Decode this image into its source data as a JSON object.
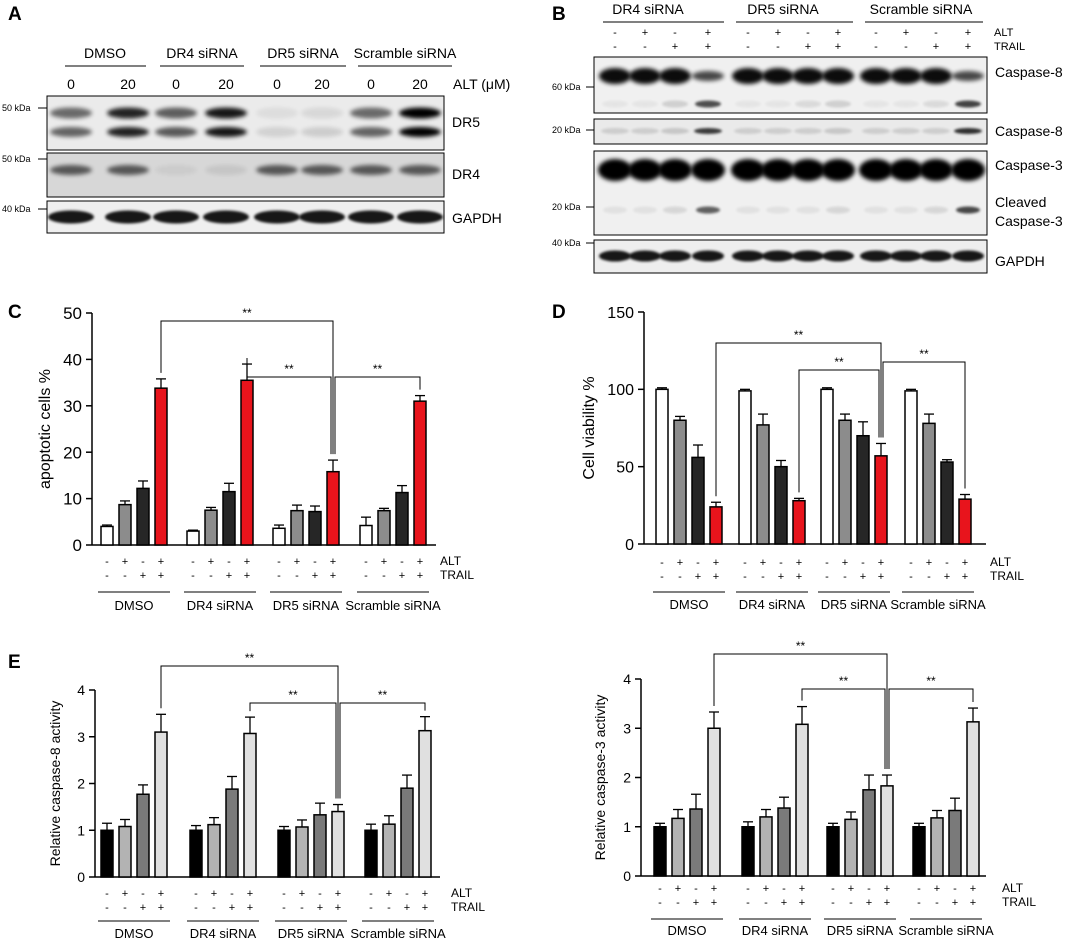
{
  "panel_letters": [
    "A",
    "B",
    "C",
    "D",
    "E"
  ],
  "blot_a": {
    "groups": [
      "DMSO",
      "DR4 siRNA",
      "DR5 siRNA",
      "Scramble siRNA"
    ],
    "doses": [
      "0",
      "20",
      "0",
      "20",
      "0",
      "20",
      "0",
      "20"
    ],
    "dose_label": "ALT (μM)",
    "markers": [
      "50 kDa",
      "50 kDa",
      "40 kDa"
    ],
    "bands": [
      "DR5",
      "DR4",
      "GAPDH"
    ],
    "intensity": {
      "DR5": [
        0.55,
        0.85,
        0.6,
        0.9,
        0.06,
        0.08,
        0.55,
        1.0
      ],
      "DR4": [
        0.6,
        0.6,
        0.05,
        0.08,
        0.6,
        0.6,
        0.6,
        0.6
      ],
      "GAPDH": [
        0.9,
        0.9,
        0.9,
        0.9,
        0.9,
        0.9,
        0.9,
        0.9
      ]
    }
  },
  "blot_b": {
    "groups": [
      "DR4 siRNA",
      "DR5 siRNA",
      "Scramble siRNA"
    ],
    "alt_label": "ALT",
    "trail_label": "TRAIL",
    "alt_signs": [
      "-",
      "+",
      "-",
      "+",
      "-",
      "+",
      "-",
      "+",
      "-",
      "+",
      "-",
      "+"
    ],
    "trail_signs": [
      "-",
      "-",
      "+",
      "+",
      "-",
      "-",
      "+",
      "+",
      "-",
      "-",
      "+",
      "+"
    ],
    "markers": [
      "60 kDa",
      "20 kDa",
      "20 kDa",
      "40 kDa"
    ],
    "labels": [
      "Caspase-8",
      "Caspase-8",
      "Caspase-3",
      "Cleaved",
      "Caspase-3",
      "GAPDH"
    ],
    "cleaved_casp8": [
      0.05,
      0.05,
      0.15,
      0.75,
      0.05,
      0.05,
      0.1,
      0.15,
      0.05,
      0.05,
      0.1,
      0.8
    ],
    "cleaved_casp3": [
      0.05,
      0.05,
      0.1,
      0.6,
      0.05,
      0.05,
      0.05,
      0.1,
      0.05,
      0.05,
      0.1,
      0.7
    ]
  },
  "significance": "**",
  "chart_data": [
    {
      "id": "C",
      "type": "bar",
      "ylabel": "apoptotic cells %",
      "ylim": [
        0,
        50
      ],
      "yticks": [
        0,
        10,
        20,
        30,
        40,
        50
      ],
      "groups": [
        "DMSO",
        "DR4 siRNA",
        "DR5 siRNA",
        "Scramble siRNA"
      ],
      "alt_label": "ALT",
      "trail_label": "TRAIL",
      "alt_signs": [
        "-",
        "+",
        "-",
        "+"
      ],
      "trail_signs": [
        "-",
        "-",
        "+",
        "+"
      ],
      "values": [
        [
          4.0,
          8.7,
          12.2,
          33.8
        ],
        [
          3.0,
          7.5,
          11.5,
          35.5
        ],
        [
          3.6,
          7.4,
          7.2,
          15.8
        ],
        [
          4.2,
          7.4,
          11.3,
          31.0
        ]
      ],
      "errors": [
        [
          0.3,
          0.8,
          1.6,
          2.0
        ],
        [
          0.2,
          0.6,
          1.8,
          3.5
        ],
        [
          0.7,
          1.2,
          1.2,
          2.5
        ],
        [
          1.8,
          0.5,
          1.5,
          1.2
        ]
      ],
      "colors": [
        "#ffffff",
        "#8c8c8c",
        "#262626",
        "#e8141c"
      ],
      "comparisons": [
        {
          "from": [
            0,
            3
          ],
          "to": [
            2,
            3
          ],
          "label": "**"
        },
        {
          "from": [
            1,
            3
          ],
          "to": [
            2,
            3
          ],
          "label": "**"
        },
        {
          "from": [
            3,
            3
          ],
          "to": [
            2,
            3
          ],
          "label": "**"
        }
      ]
    },
    {
      "id": "D",
      "type": "bar",
      "ylabel": "Cell viability %",
      "ylim": [
        0,
        150
      ],
      "yticks": [
        0,
        50,
        100,
        150
      ],
      "groups": [
        "DMSO",
        "DR4 siRNA",
        "DR5 siRNA",
        "Scramble siRNA"
      ],
      "alt_label": "ALT",
      "trail_label": "TRAIL",
      "alt_signs": [
        "-",
        "+",
        "-",
        "+"
      ],
      "trail_signs": [
        "-",
        "-",
        "+",
        "+"
      ],
      "values": [
        [
          100,
          80,
          56,
          24
        ],
        [
          99,
          77,
          50,
          28
        ],
        [
          100,
          80,
          70,
          57
        ],
        [
          99,
          78,
          53,
          29
        ]
      ],
      "errors": [
        [
          1,
          2.5,
          8,
          3
        ],
        [
          1,
          7,
          4,
          1.5
        ],
        [
          1,
          4,
          9,
          8
        ],
        [
          1,
          6,
          1.5,
          3
        ]
      ],
      "colors": [
        "#ffffff",
        "#8c8c8c",
        "#262626",
        "#e8141c"
      ],
      "comparisons": [
        {
          "from": [
            0,
            3
          ],
          "to": [
            2,
            3
          ],
          "label": "**"
        },
        {
          "from": [
            1,
            3
          ],
          "to": [
            2,
            3
          ],
          "label": "**"
        },
        {
          "from": [
            3,
            3
          ],
          "to": [
            2,
            3
          ],
          "label": "**"
        }
      ]
    },
    {
      "id": "E1",
      "type": "bar",
      "ylabel": "Relative caspase-8 activity",
      "ylim": [
        0,
        4
      ],
      "yticks": [
        0,
        1,
        2,
        3,
        4
      ],
      "groups": [
        "DMSO",
        "DR4 siRNA",
        "DR5 siRNA",
        "Scramble siRNA"
      ],
      "alt_label": "ALT",
      "trail_label": "TRAIL",
      "alt_signs": [
        "-",
        "+",
        "-",
        "+"
      ],
      "trail_signs": [
        "-",
        "-",
        "+",
        "+"
      ],
      "values": [
        [
          1.0,
          1.08,
          1.77,
          3.1
        ],
        [
          1.0,
          1.12,
          1.88,
          3.07
        ],
        [
          1.0,
          1.07,
          1.33,
          1.4
        ],
        [
          1.0,
          1.13,
          1.9,
          3.13
        ]
      ],
      "errors": [
        [
          0.15,
          0.15,
          0.2,
          0.38
        ],
        [
          0.1,
          0.15,
          0.27,
          0.35
        ],
        [
          0.08,
          0.15,
          0.25,
          0.15
        ],
        [
          0.13,
          0.18,
          0.28,
          0.3
        ]
      ],
      "colors": [
        "#000000",
        "#b3b3b3",
        "#7a7a7a",
        "#e0e0e0"
      ],
      "comparisons": [
        {
          "from": [
            0,
            3
          ],
          "to": [
            2,
            3
          ],
          "label": "**"
        },
        {
          "from": [
            1,
            3
          ],
          "to": [
            2,
            3
          ],
          "label": "**"
        },
        {
          "from": [
            3,
            3
          ],
          "to": [
            2,
            3
          ],
          "label": "**"
        }
      ]
    },
    {
      "id": "E2",
      "type": "bar",
      "ylabel": "Relative caspase-3 activity",
      "ylim": [
        0,
        4
      ],
      "yticks": [
        0,
        1,
        2,
        3,
        4
      ],
      "groups": [
        "DMSO",
        "DR4 siRNA",
        "DR5 siRNA",
        "Scramble siRNA"
      ],
      "alt_label": "ALT",
      "trail_label": "TRAIL",
      "alt_signs": [
        "-",
        "+",
        "-",
        "+"
      ],
      "trail_signs": [
        "-",
        "-",
        "+",
        "+"
      ],
      "values": [
        [
          1.0,
          1.17,
          1.36,
          3.0
        ],
        [
          1.0,
          1.2,
          1.38,
          3.08
        ],
        [
          1.0,
          1.15,
          1.75,
          1.83
        ],
        [
          1.0,
          1.18,
          1.33,
          3.13
        ]
      ],
      "errors": [
        [
          0.07,
          0.18,
          0.3,
          0.33
        ],
        [
          0.1,
          0.15,
          0.22,
          0.36
        ],
        [
          0.07,
          0.15,
          0.3,
          0.22
        ],
        [
          0.07,
          0.15,
          0.25,
          0.28
        ]
      ],
      "colors": [
        "#000000",
        "#b3b3b3",
        "#7a7a7a",
        "#e0e0e0"
      ],
      "comparisons": [
        {
          "from": [
            0,
            3
          ],
          "to": [
            2,
            3
          ],
          "label": "**"
        },
        {
          "from": [
            1,
            3
          ],
          "to": [
            2,
            3
          ],
          "label": "**"
        },
        {
          "from": [
            3,
            3
          ],
          "to": [
            2,
            3
          ],
          "label": "**"
        }
      ]
    }
  ]
}
